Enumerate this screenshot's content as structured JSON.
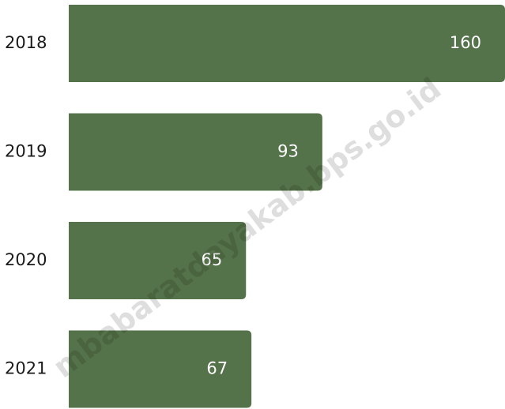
{
  "chart_data": {
    "type": "bar",
    "orientation": "horizontal",
    "categories": [
      "2018",
      "2019",
      "2020",
      "2021"
    ],
    "values": [
      160,
      93,
      65,
      67
    ],
    "xlim": [
      0,
      160
    ],
    "grid": false,
    "legend": "none",
    "bar_color": "#55734a",
    "label_color": "#ffffff"
  },
  "watermark": "mbabaratdayakab.bps.go.id"
}
